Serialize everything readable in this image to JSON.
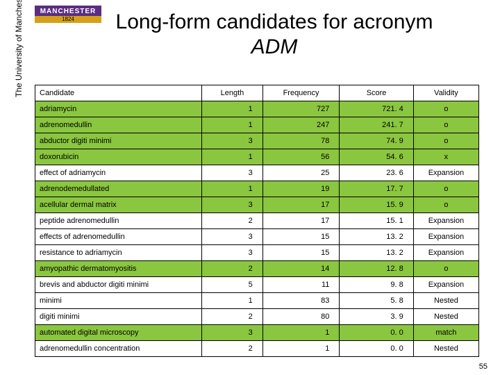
{
  "logo": {
    "top": "MANCHESTER",
    "year": "1824",
    "side": "The University of Manchester"
  },
  "title": {
    "line1": "Long-form candidates for acronym",
    "line2": "ADM"
  },
  "headers": {
    "candidate": "Candidate",
    "length": "Length",
    "frequency": "Frequency",
    "score": "Score",
    "validity": "Validity"
  },
  "rows": [
    {
      "c": "adriamycin",
      "l": "1",
      "f": "727",
      "s": "721. 4",
      "v": "o",
      "hl": true
    },
    {
      "c": "adrenomedullin",
      "l": "1",
      "f": "247",
      "s": "241. 7",
      "v": "o",
      "hl": true
    },
    {
      "c": "abductor digiti minimi",
      "l": "3",
      "f": "78",
      "s": "74. 9",
      "v": "o",
      "hl": true
    },
    {
      "c": "doxorubicin",
      "l": "1",
      "f": "56",
      "s": "54. 6",
      "v": "x",
      "hl": true
    },
    {
      "c": "effect of adriamycin",
      "l": "3",
      "f": "25",
      "s": "23. 6",
      "v": "Expansion",
      "hl": false
    },
    {
      "c": "adrenodemedullated",
      "l": "1",
      "f": "19",
      "s": "17. 7",
      "v": "o",
      "hl": true
    },
    {
      "c": "acellular dermal matrix",
      "l": "3",
      "f": "17",
      "s": "15. 9",
      "v": "o",
      "hl": true
    },
    {
      "c": "peptide adrenomedullin",
      "l": "2",
      "f": "17",
      "s": "15. 1",
      "v": "Expansion",
      "hl": false
    },
    {
      "c": "effects of adrenomedullin",
      "l": "3",
      "f": "15",
      "s": "13. 2",
      "v": "Expansion",
      "hl": false
    },
    {
      "c": "resistance to adriamycin",
      "l": "3",
      "f": "15",
      "s": "13. 2",
      "v": "Expansion",
      "hl": false
    },
    {
      "c": "amyopathic dermatomyositis",
      "l": "2",
      "f": "14",
      "s": "12. 8",
      "v": "o",
      "hl": true,
      "dashedbot": true
    },
    {
      "c": "brevis and abductor digiti minimi",
      "l": "5",
      "f": "11",
      "s": "9. 8",
      "v": "Expansion",
      "hl": false
    },
    {
      "c": "minimi",
      "l": "1",
      "f": "83",
      "s": "5. 8",
      "v": "Nested",
      "hl": false
    },
    {
      "c": "digiti minimi",
      "l": "2",
      "f": "80",
      "s": "3. 9",
      "v": "Nested",
      "hl": false,
      "dashedbot": true
    },
    {
      "c": "automated digital microscopy",
      "l": "3",
      "f": "1",
      "s": "0. 0",
      "v": "match",
      "hl": true
    },
    {
      "c": "adrenomedullin concentration",
      "l": "2",
      "f": "1",
      "s": "0. 0",
      "v": "Nested",
      "hl": false
    }
  ],
  "page_number": "55"
}
